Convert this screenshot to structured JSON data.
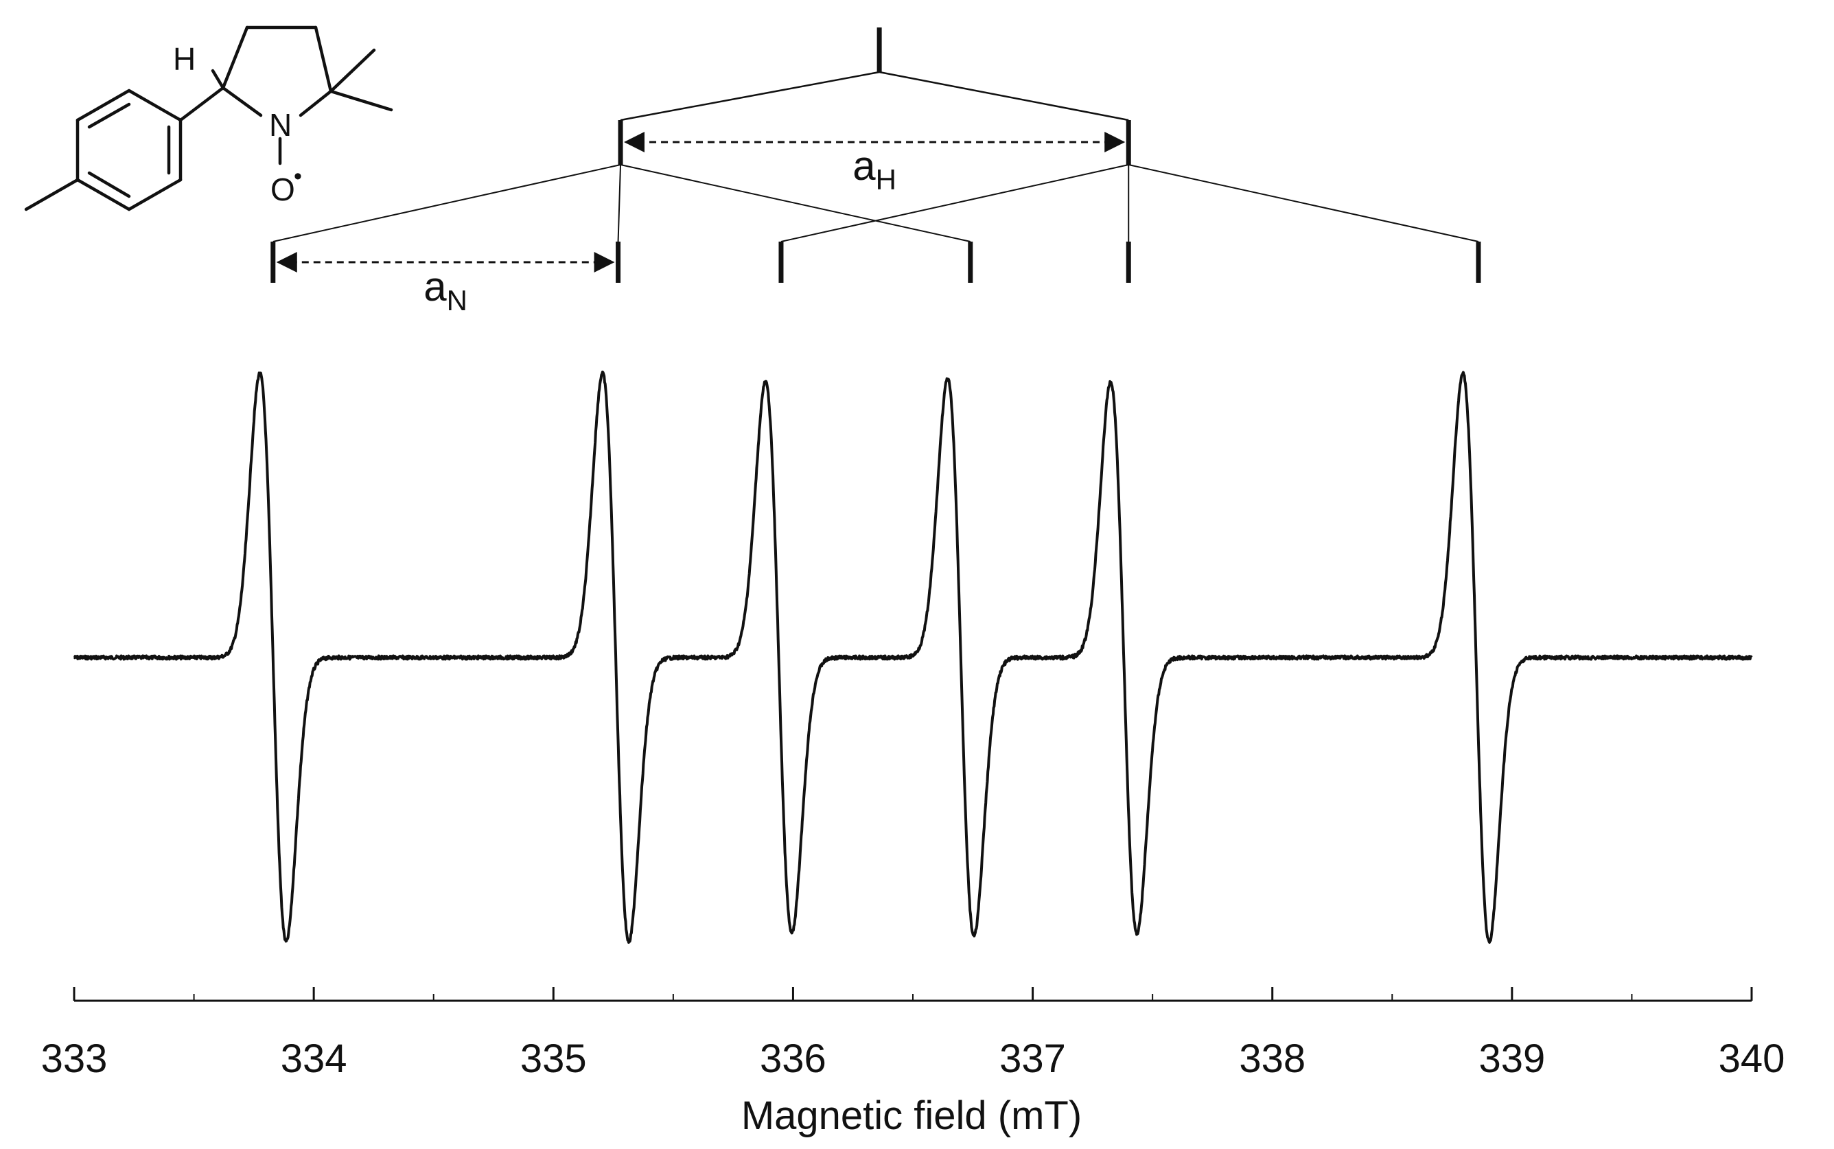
{
  "chart_data": {
    "type": "line",
    "xlabel": "Magnetic field (mT)",
    "ylabel": "",
    "xlim": [
      333,
      340
    ],
    "xticks": [
      "333",
      "334",
      "335",
      "336",
      "337",
      "338",
      "339",
      "340"
    ],
    "grid": false,
    "series": [
      {
        "line_centers_mT": [
          333.83,
          335.26,
          335.94,
          336.7,
          337.38,
          338.85
        ],
        "relative_amplitude": [
          1.0,
          1.0,
          0.97,
          0.98,
          0.97,
          1.0
        ]
      }
    ],
    "splitting_tree": {
      "labels": [
        {
          "main": "a",
          "sub": "H"
        },
        {
          "main": "a",
          "sub": "N"
        }
      ],
      "levels": [
        [
          336.36
        ],
        [
          335.28,
          337.4
        ],
        [
          333.83,
          335.27,
          335.95,
          336.74,
          337.4,
          338.86
        ]
      ]
    }
  },
  "structure": {
    "atoms": {
      "h": "H",
      "n": "N",
      "o": "O",
      "radical": "•"
    }
  },
  "colors": {
    "line": "#111111",
    "background": "#ffffff"
  }
}
